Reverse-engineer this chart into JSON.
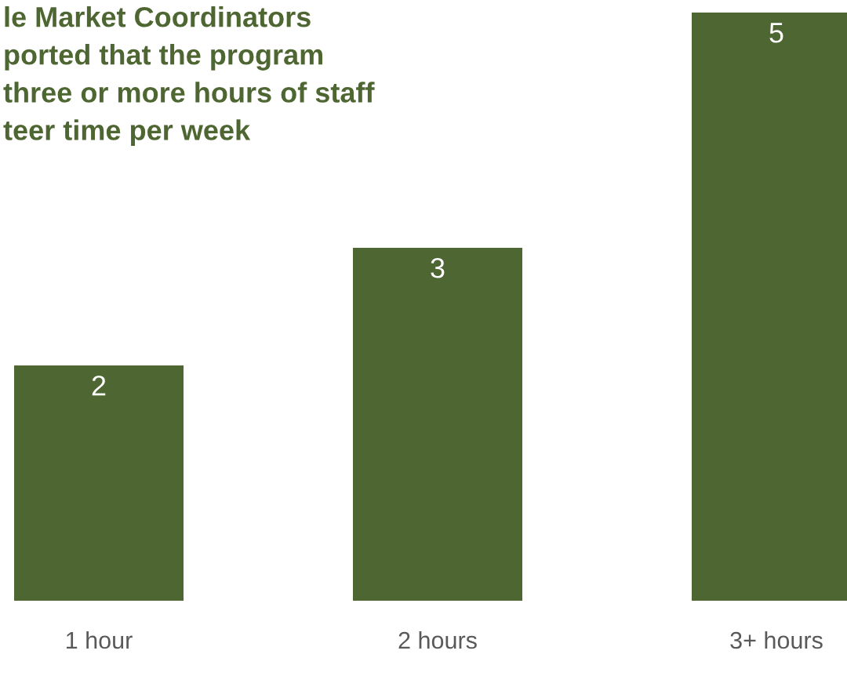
{
  "chart_data": {
    "type": "bar",
    "title": "le Market Coordinators\nported that the program\nthree or more hours of staff\nteer time per week",
    "categories": [
      "1 hour",
      "2 hours",
      "3+ hours"
    ],
    "values": [
      2,
      3,
      5
    ],
    "color": "#4e6631",
    "data_labels": true
  }
}
